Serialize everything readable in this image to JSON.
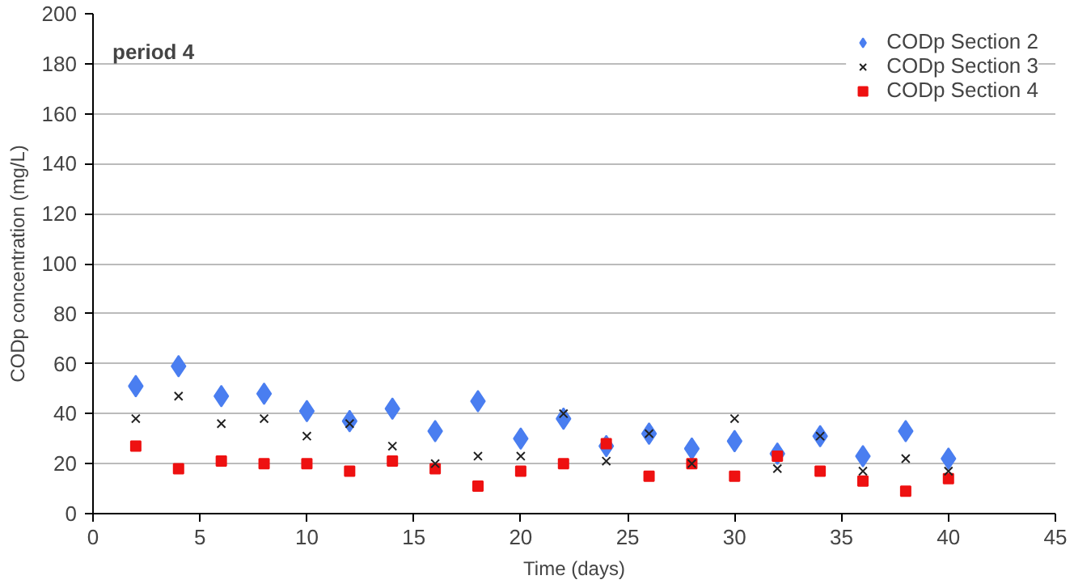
{
  "chart_data": {
    "type": "scatter",
    "xlabel": "Time (days)",
    "ylabel": "CODp concentration (mg/L)",
    "annotations": [
      "period 4"
    ],
    "x": [
      2,
      4,
      6,
      8,
      10,
      12,
      14,
      16,
      18,
      20,
      22,
      24,
      26,
      28,
      30,
      32,
      34,
      36,
      38,
      40
    ],
    "series": [
      {
        "name": "CODp Section 2",
        "color": "#4a7ef0",
        "marker": "diamond",
        "values": [
          51,
          59,
          47,
          48,
          41,
          37,
          42,
          33,
          45,
          30,
          38,
          27,
          32,
          26,
          29,
          24,
          31,
          23,
          33,
          22
        ]
      },
      {
        "name": "CODp Section 3",
        "color": "#222222",
        "marker": "cross",
        "values": [
          38,
          47,
          36,
          38,
          31,
          36,
          27,
          20,
          23,
          23,
          40,
          21,
          32,
          20,
          38,
          18,
          31,
          17,
          22,
          17
        ]
      },
      {
        "name": "CODp Section 4",
        "color": "#ee1111",
        "marker": "square",
        "values": [
          27,
          18,
          21,
          20,
          20,
          17,
          21,
          18,
          11,
          17,
          20,
          28,
          15,
          20,
          15,
          23,
          17,
          13,
          9,
          14
        ]
      }
    ],
    "xlim": [
      0,
      45
    ],
    "xticks": [
      0,
      5,
      10,
      15,
      20,
      25,
      30,
      35,
      40,
      45
    ],
    "ylim": [
      0,
      200
    ],
    "yticks": [
      0,
      20,
      40,
      60,
      80,
      100,
      120,
      140,
      160,
      180,
      200
    ],
    "grid": "y",
    "legend": "top right"
  }
}
